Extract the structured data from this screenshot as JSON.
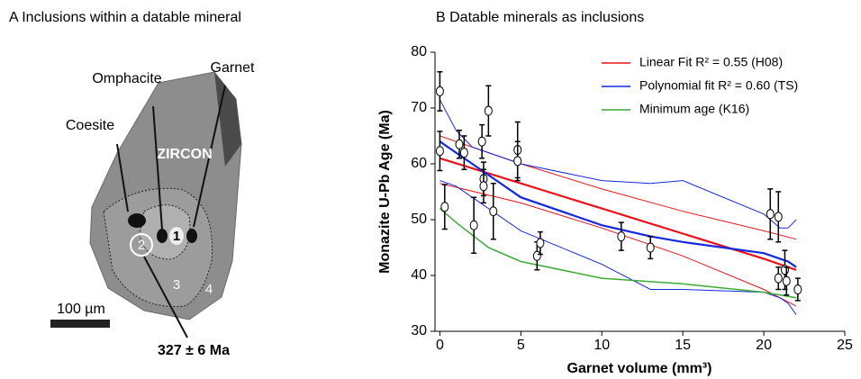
{
  "panel_a": {
    "title": "A Inclusions within a datable mineral",
    "labels": {
      "omphacite": "Omphacite",
      "garnet": "Garnet",
      "coesite": "Coesite",
      "zircon": "ZIRCON",
      "spot1": "1",
      "spot2": "2",
      "zone3": "3",
      "zone4": "4",
      "scale": "100 µm",
      "age": "327 ± 6 Ma"
    }
  },
  "chart_data": {
    "type": "scatter",
    "title": "B Datable minerals as inclusions",
    "xlabel": "Garnet volume (mm³)",
    "ylabel": "Monazite U-Pb Age (Ma)",
    "xlim": [
      -0.3,
      25
    ],
    "ylim": [
      30,
      80
    ],
    "xticks": [
      0,
      5,
      10,
      15,
      20,
      25
    ],
    "yticks": [
      30,
      40,
      50,
      60,
      70,
      80
    ],
    "grid": false,
    "legend": "upper right",
    "points": {
      "x": [
        0,
        0,
        0.3,
        1.2,
        1.5,
        2.1,
        2.6,
        2.7,
        2.7,
        3,
        3.3,
        4.8,
        4.8,
        6,
        6.2,
        11.2,
        13,
        20.4,
        20.9,
        20.9,
        21.3,
        21.4,
        22.1
      ],
      "values": [
        73,
        62.3,
        52.3,
        63.5,
        62,
        49,
        64,
        57.3,
        56,
        69.5,
        51.5,
        62.5,
        60.5,
        43.5,
        45.8,
        47,
        45,
        51,
        50.5,
        39.5,
        41,
        39,
        37.5
      ],
      "errors": [
        3.5,
        3.5,
        4,
        2.5,
        3,
        5,
        3,
        3,
        3,
        4.5,
        5,
        5,
        3.5,
        2.5,
        2,
        2.5,
        2,
        4.5,
        4.5,
        2,
        3.5,
        2.5,
        2
      ]
    },
    "series": [
      {
        "name": "Linear Fit R² = 0.55 (H08)",
        "color": "#e8141b",
        "x": [
          0,
          5,
          10,
          15,
          20,
          22
        ],
        "values": [
          61,
          56.5,
          52,
          47.5,
          43,
          41
        ],
        "upper": [
          65,
          60,
          55.5,
          51.5,
          48,
          46.5
        ],
        "lower": [
          56.5,
          53,
          48.5,
          43.5,
          37.5,
          34.5
        ]
      },
      {
        "name": "Polynomial fit R² = 0.60 (TS)",
        "color": "#1428e0",
        "x": [
          0,
          1,
          2,
          5,
          10,
          13,
          15,
          20,
          21,
          21.5,
          22
        ],
        "values": [
          64,
          62,
          60,
          54,
          49,
          47,
          46,
          44,
          43,
          42.5,
          41.5
        ],
        "upper": [
          71.5,
          66,
          63,
          60,
          57,
          56.5,
          57,
          51,
          48.5,
          48.5,
          50
        ],
        "lower": [
          57,
          56,
          54,
          48,
          42,
          37.5,
          37.5,
          37,
          36,
          35,
          33
        ]
      },
      {
        "name": "Minimum age (K16)",
        "color": "#3daa35",
        "x": [
          0,
          1,
          3,
          5,
          10,
          15,
          20,
          22
        ],
        "values": [
          52,
          49.5,
          45,
          42.5,
          39.5,
          38.5,
          37,
          36
        ]
      }
    ]
  }
}
